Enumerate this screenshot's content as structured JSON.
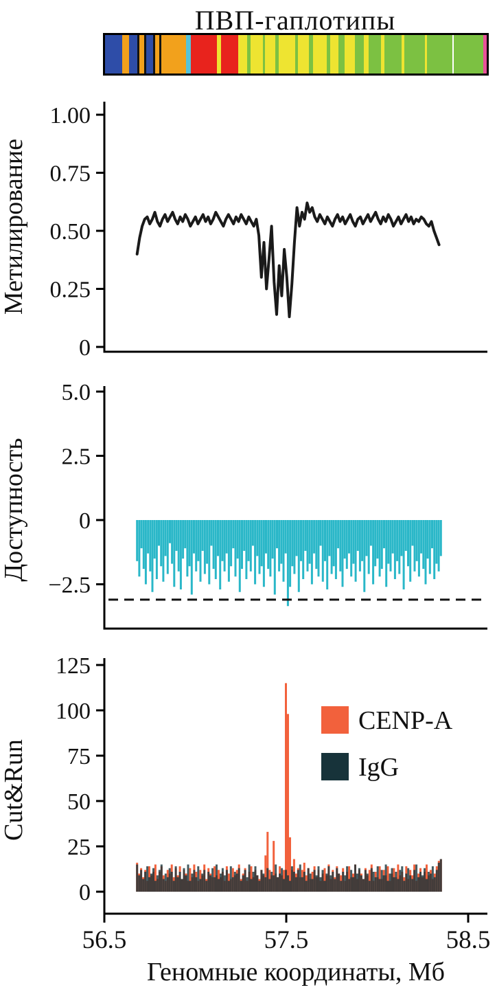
{
  "title": "ПВП-гаплотипы",
  "x_axis": {
    "label": "Геномные координаты, Мб",
    "tick_values": [
      56.5,
      57.5,
      58.5
    ],
    "tick_labels": [
      "56.5",
      "57.5",
      "58.5"
    ]
  },
  "chart_data": [
    {
      "id": "haplotype-track",
      "type": "heatmap",
      "title": "ПВП-гаплотипы",
      "segments": [
        {
          "color": "#2e4da8",
          "w": 4.2
        },
        {
          "color": "#f2a11c",
          "w": 1.5
        },
        {
          "color": "#2e4da8",
          "w": 2.0
        },
        {
          "color": "#141414",
          "w": 0.5
        },
        {
          "color": "#f2a11c",
          "w": 1.2
        },
        {
          "color": "#141414",
          "w": 0.5
        },
        {
          "color": "#2e4da8",
          "w": 1.6
        },
        {
          "color": "#141414",
          "w": 0.6
        },
        {
          "color": "#f2a11c",
          "w": 0.9
        },
        {
          "color": "#141414",
          "w": 0.5
        },
        {
          "color": "#f2a11c",
          "w": 6.0
        },
        {
          "color": "#56c4d9",
          "w": 1.1
        },
        {
          "color": "#e8231d",
          "w": 6.2
        },
        {
          "color": "#eee431",
          "w": 1.0
        },
        {
          "color": "#e8231d",
          "w": 4.2
        },
        {
          "color": "#eee431",
          "w": 2.2
        },
        {
          "color": "#7cc142",
          "w": 0.7
        },
        {
          "color": "#eee431",
          "w": 3.0
        },
        {
          "color": "#7cc142",
          "w": 0.6
        },
        {
          "color": "#eee431",
          "w": 2.4
        },
        {
          "color": "#7cc142",
          "w": 0.8
        },
        {
          "color": "#eee431",
          "w": 4.0
        },
        {
          "color": "#7cc142",
          "w": 0.6
        },
        {
          "color": "#eee431",
          "w": 2.6
        },
        {
          "color": "#7cc142",
          "w": 1.0
        },
        {
          "color": "#eee431",
          "w": 3.4
        },
        {
          "color": "#7cc142",
          "w": 0.8
        },
        {
          "color": "#eee431",
          "w": 2.0
        },
        {
          "color": "#7cc142",
          "w": 1.4
        },
        {
          "color": "#eee431",
          "w": 2.6
        },
        {
          "color": "#7cc142",
          "w": 2.0
        },
        {
          "color": "#eee431",
          "w": 1.2
        },
        {
          "color": "#7cc142",
          "w": 3.0
        },
        {
          "color": "#eee431",
          "w": 0.8
        },
        {
          "color": "#7cc142",
          "w": 4.2
        },
        {
          "color": "#eee431",
          "w": 0.6
        },
        {
          "color": "#7cc142",
          "w": 5.0
        },
        {
          "color": "#eee431",
          "w": 0.5
        },
        {
          "color": "#7cc142",
          "w": 6.0
        },
        {
          "color": "#ffffff",
          "w": 0.4
        },
        {
          "color": "#7cc142",
          "w": 7.0
        },
        {
          "color": "#e8509a",
          "w": 0.9
        }
      ]
    },
    {
      "id": "methylation",
      "type": "line",
      "ylabel": "Метилирование",
      "ylim": [
        0,
        1.0
      ],
      "tick_values": [
        1.0,
        0.75,
        0.5,
        0.25,
        0
      ],
      "tick_labels": [
        "1.00",
        "0.75",
        "0.50",
        "0.25",
        "0"
      ],
      "x_range": [
        56.68,
        58.34
      ],
      "color": "#1a1a1a",
      "values": [
        0.4,
        0.47,
        0.52,
        0.55,
        0.56,
        0.53,
        0.55,
        0.58,
        0.54,
        0.52,
        0.55,
        0.57,
        0.54,
        0.56,
        0.58,
        0.55,
        0.53,
        0.56,
        0.54,
        0.57,
        0.55,
        0.52,
        0.54,
        0.56,
        0.53,
        0.55,
        0.57,
        0.54,
        0.56,
        0.53,
        0.55,
        0.58,
        0.56,
        0.54,
        0.52,
        0.55,
        0.57,
        0.55,
        0.53,
        0.56,
        0.54,
        0.57,
        0.55,
        0.53,
        0.56,
        0.54,
        0.52,
        0.55,
        0.48,
        0.3,
        0.45,
        0.25,
        0.38,
        0.52,
        0.28,
        0.14,
        0.35,
        0.22,
        0.42,
        0.3,
        0.13,
        0.27,
        0.45,
        0.6,
        0.52,
        0.58,
        0.55,
        0.62,
        0.58,
        0.6,
        0.56,
        0.54,
        0.57,
        0.55,
        0.53,
        0.56,
        0.54,
        0.52,
        0.55,
        0.57,
        0.54,
        0.56,
        0.53,
        0.55,
        0.57,
        0.54,
        0.52,
        0.55,
        0.56,
        0.53,
        0.55,
        0.57,
        0.54,
        0.56,
        0.58,
        0.55,
        0.53,
        0.56,
        0.54,
        0.57,
        0.55,
        0.52,
        0.54,
        0.56,
        0.53,
        0.55,
        0.57,
        0.54,
        0.56,
        0.53,
        0.55,
        0.54,
        0.56,
        0.55,
        0.53,
        0.52,
        0.54,
        0.5,
        0.47,
        0.44
      ]
    },
    {
      "id": "accessibility",
      "type": "bar",
      "ylabel": "Доступность",
      "ylim": [
        -4,
        5
      ],
      "tick_values": [
        5.0,
        2.5,
        0,
        -2.5
      ],
      "tick_labels": [
        "5.0",
        "2.5",
        "0",
        "−2.5"
      ],
      "threshold_line": -3.1,
      "x_range": [
        56.68,
        58.35
      ],
      "color": "#2ab7c8",
      "values": [
        -1.6,
        -2.2,
        -1.1,
        -1.9,
        -2.5,
        -1.3,
        -2.0,
        -2.8,
        -1.5,
        -2.3,
        -1.0,
        -1.8,
        -2.4,
        -1.4,
        -2.1,
        -0.9,
        -1.7,
        -2.6,
        -1.2,
        -2.0,
        -2.7,
        -1.5,
        -1.1,
        -2.2,
        -1.8,
        -2.9,
        -1.3,
        -2.0,
        -1.6,
        -2.4,
        -1.2,
        -2.1,
        -1.7,
        -2.5,
        -1.0,
        -1.9,
        -2.3,
        -1.4,
        -2.7,
        -1.6,
        -2.0,
        -1.3,
        -2.4,
        -1.8,
        -1.1,
        -2.2,
        -1.5,
        -2.8,
        -1.9,
        -1.2,
        -2.3,
        -1.6,
        -2.0,
        -1.0,
        -2.5,
        -1.4,
        -2.1,
        -1.8,
        -2.6,
        -1.3,
        -1.9,
        -2.2,
        -1.5,
        -2.9,
        -1.1,
        -2.0,
        -1.7,
        -2.4,
        -1.3,
        -3.35,
        -2.6,
        -1.8,
        -2.1,
        -1.4,
        -2.8,
        -1.6,
        -2.3,
        -1.2,
        -2.0,
        -1.7,
        -2.5,
        -1.3,
        -1.9,
        -2.2,
        -1.0,
        -2.4,
        -1.6,
        -2.7,
        -1.4,
        -2.1,
        -1.8,
        -2.3,
        -1.1,
        -2.0,
        -2.6,
        -1.5,
        -1.9,
        -1.3,
        -2.2,
        -1.7,
        -2.4,
        -1.2,
        -2.0,
        -1.6,
        -2.8,
        -1.4,
        -2.1,
        -1.0,
        -2.5,
        -1.8,
        -1.5,
        -2.2,
        -1.9,
        -1.1,
        -2.6,
        -1.7,
        -2.0,
        -1.3,
        -2.3,
        -1.6,
        -2.1,
        -1.4,
        -2.7,
        -1.2,
        -1.8,
        -2.4,
        -1.0,
        -2.0,
        -1.6,
        -2.2,
        -1.3,
        -1.9,
        -2.5,
        -1.5,
        -2.1,
        -1.1,
        -2.3,
        -1.7,
        -2.0,
        -1.4
      ]
    },
    {
      "id": "cutrun",
      "type": "bar",
      "ylabel": "Cut&Run",
      "ylim": [
        0,
        125
      ],
      "tick_values": [
        125,
        100,
        75,
        50,
        25,
        0
      ],
      "tick_labels": [
        "125",
        "100",
        "75",
        "50",
        "25",
        "0"
      ],
      "x_range": [
        56.68,
        58.35
      ],
      "legend": [
        {
          "label": "CENP-A",
          "color": "#f2613c"
        },
        {
          "label": "IgG",
          "color": "#17333a"
        }
      ],
      "series": [
        {
          "name": "CENP-A",
          "color": "#f2613c",
          "values": [
            16,
            10,
            13,
            8,
            12,
            6,
            14,
            9,
            11,
            15,
            7,
            11,
            14,
            9,
            6,
            12,
            10,
            15,
            8,
            13,
            9,
            14,
            7,
            12,
            10,
            6,
            13,
            8,
            15,
            11,
            6,
            12,
            9,
            15,
            7,
            13,
            10,
            8,
            14,
            9,
            12,
            8,
            11,
            6,
            14,
            10,
            7,
            13,
            9,
            12,
            15,
            7,
            10,
            13,
            6,
            11,
            14,
            8,
            12,
            9,
            7,
            12,
            9,
            20,
            33,
            12,
            9,
            28,
            10,
            8,
            14,
            9,
            12,
            115,
            98,
            30,
            12,
            18,
            10,
            13,
            8,
            12,
            16,
            9,
            13,
            7,
            11,
            14,
            8,
            12,
            6,
            10,
            13,
            9,
            15,
            7,
            12,
            8,
            14,
            10,
            9,
            13,
            6,
            11,
            14,
            8,
            10,
            15,
            7,
            12,
            10,
            7,
            13,
            9,
            12,
            15,
            6,
            11,
            8,
            14,
            7,
            12,
            9,
            14,
            6,
            10,
            13,
            8,
            15,
            9,
            11,
            8,
            14,
            7,
            12,
            9,
            15,
            6,
            10,
            13,
            8,
            11,
            15,
            9,
            12,
            7,
            10,
            14,
            17,
            18
          ]
        },
        {
          "name": "IgG",
          "color": "#17333a",
          "values": [
            15,
            9,
            12,
            7,
            11,
            14,
            8,
            10,
            13,
            6,
            9,
            12,
            15,
            7,
            10,
            8,
            13,
            11,
            6,
            14,
            8,
            11,
            7,
            13,
            9,
            15,
            6,
            10,
            12,
            8,
            14,
            7,
            10,
            12,
            6,
            11,
            9,
            13,
            8,
            15,
            7,
            10,
            13,
            9,
            12,
            6,
            14,
            8,
            11,
            10,
            13,
            6,
            9,
            12,
            8,
            15,
            7,
            11,
            14,
            9,
            6,
            12,
            10,
            8,
            13,
            7,
            11,
            9,
            15,
            8,
            10,
            13,
            7,
            12,
            9,
            6,
            14,
            11,
            8,
            12,
            15,
            8,
            11,
            6,
            13,
            10,
            7,
            12,
            9,
            14,
            8,
            12,
            6,
            10,
            14,
            9,
            11,
            7,
            13,
            10,
            6,
            11,
            9,
            14,
            7,
            12,
            8,
            15,
            10,
            13,
            9,
            7,
            12,
            10,
            6,
            13,
            11,
            8,
            14,
            7,
            12,
            9,
            15,
            6,
            10,
            13,
            8,
            11,
            7,
            12,
            14,
            6,
            10,
            13,
            9,
            7,
            12,
            15,
            8,
            11,
            9,
            13,
            7,
            11,
            10,
            14,
            8,
            12,
            16,
            18
          ]
        }
      ]
    }
  ]
}
